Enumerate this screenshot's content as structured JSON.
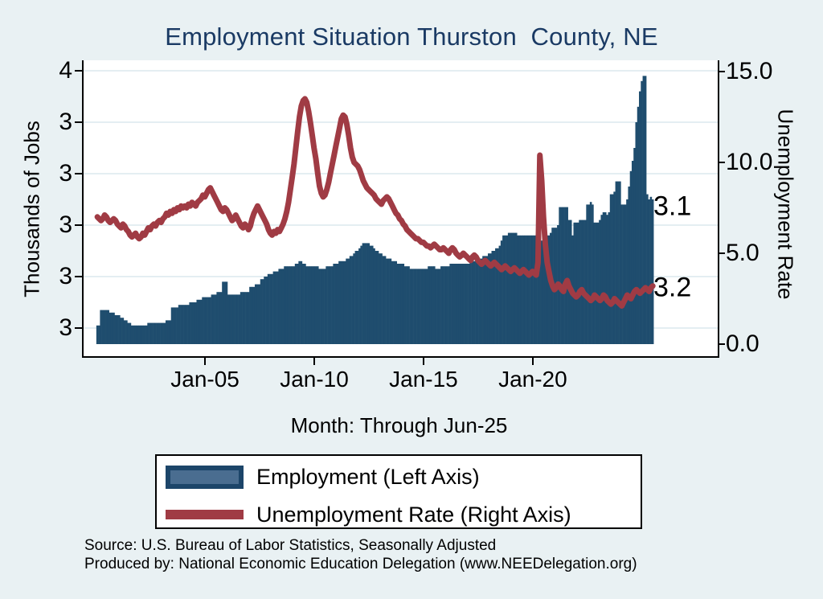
{
  "title": "Employment Situation Thurston  County, NE",
  "axes": {
    "left": {
      "title": "Thousands of Jobs",
      "tick_labels": [
        "4",
        "3",
        "3",
        "3",
        "3",
        "3"
      ],
      "tick_values": [
        3.6,
        3.4,
        3.2,
        3.0,
        2.8,
        2.6
      ]
    },
    "right": {
      "title": "Unemployment Rate",
      "tick_labels": [
        "15.0",
        "10.0",
        "5.0",
        "0.0"
      ],
      "tick_values": [
        15,
        10,
        5,
        0
      ]
    },
    "x": {
      "title": "Month: Through Jun-25",
      "tick_labels": [
        "Jan-05",
        "Jan-10",
        "Jan-15",
        "Jan-20"
      ],
      "tick_values": [
        2005,
        2010,
        2015,
        2020
      ]
    }
  },
  "annotations": [
    {
      "text": "3.1",
      "series": "Employment",
      "axis": "left",
      "value": 3.1
    },
    {
      "text": "3.2",
      "series": "Unemployment Rate",
      "axis": "right",
      "value": 3.2
    }
  ],
  "legend": {
    "items": [
      {
        "label": "Employment (Left Axis)",
        "type": "bar"
      },
      {
        "label": "Unemployment Rate (Right Axis)",
        "type": "line"
      }
    ]
  },
  "footer": {
    "source": "Source: U.S. Bureau of Labor Statistics, Seasonally Adjusted",
    "produced_by": "Produced by: National Economic Education Delegation (www.NEEDelegation.org)"
  },
  "colors": {
    "background": "#e9f1f3",
    "plot_background": "#ffffff",
    "gridline": "#dce9ee",
    "bar": "#1f4d6e",
    "line": "#a03b44",
    "title_text": "#1a3a64",
    "legend_bar_fill": "#4a6d90",
    "legend_bar_border": "#1c4569"
  },
  "chart_data": {
    "type": "bar",
    "title": "Employment Situation Thurston  County, NE",
    "xlabel": "Month: Through Jun-25",
    "x_start": "2000-01",
    "x_end": "2025-06",
    "x_frequency": "monthly",
    "left_axis": {
      "label": "Thousands of Jobs",
      "ticks": [
        2.6,
        2.8,
        3.0,
        3.2,
        3.4,
        3.6
      ]
    },
    "right_axis": {
      "label": "Unemployment Rate",
      "ticks": [
        0.0,
        5.0,
        10.0,
        15.0
      ]
    },
    "grid": true,
    "legend_position": "bottom",
    "series": [
      {
        "name": "Employment (Left Axis)",
        "type": "bar",
        "axis": "left",
        "unit": "thousands of jobs",
        "last_value": 3.1,
        "values": [
          2.61,
          2.61,
          2.67,
          2.67,
          2.67,
          2.67,
          2.67,
          2.66,
          2.66,
          2.66,
          2.65,
          2.65,
          2.65,
          2.64,
          2.64,
          2.63,
          2.63,
          2.62,
          2.62,
          2.61,
          2.61,
          2.61,
          2.61,
          2.61,
          2.61,
          2.61,
          2.61,
          2.61,
          2.62,
          2.62,
          2.62,
          2.62,
          2.62,
          2.62,
          2.62,
          2.62,
          2.62,
          2.62,
          2.63,
          2.63,
          2.63,
          2.68,
          2.68,
          2.68,
          2.68,
          2.69,
          2.69,
          2.69,
          2.69,
          2.69,
          2.69,
          2.7,
          2.7,
          2.7,
          2.7,
          2.71,
          2.71,
          2.71,
          2.72,
          2.72,
          2.72,
          2.72,
          2.72,
          2.73,
          2.73,
          2.73,
          2.74,
          2.74,
          2.74,
          2.78,
          2.78,
          2.78,
          2.73,
          2.73,
          2.73,
          2.73,
          2.73,
          2.73,
          2.73,
          2.74,
          2.74,
          2.74,
          2.74,
          2.74,
          2.76,
          2.76,
          2.76,
          2.77,
          2.77,
          2.77,
          2.79,
          2.79,
          2.8,
          2.8,
          2.81,
          2.81,
          2.81,
          2.82,
          2.82,
          2.82,
          2.83,
          2.83,
          2.83,
          2.84,
          2.84,
          2.84,
          2.84,
          2.84,
          2.84,
          2.85,
          2.85,
          2.86,
          2.86,
          2.85,
          2.85,
          2.84,
          2.84,
          2.84,
          2.84,
          2.84,
          2.84,
          2.84,
          2.83,
          2.83,
          2.83,
          2.83,
          2.84,
          2.84,
          2.84,
          2.84,
          2.85,
          2.85,
          2.85,
          2.86,
          2.86,
          2.86,
          2.86,
          2.87,
          2.87,
          2.88,
          2.88,
          2.89,
          2.9,
          2.9,
          2.91,
          2.92,
          2.93,
          2.93,
          2.93,
          2.93,
          2.92,
          2.92,
          2.91,
          2.9,
          2.9,
          2.89,
          2.89,
          2.88,
          2.88,
          2.87,
          2.87,
          2.87,
          2.86,
          2.86,
          2.86,
          2.85,
          2.85,
          2.85,
          2.85,
          2.84,
          2.84,
          2.84,
          2.83,
          2.83,
          2.83,
          2.83,
          2.83,
          2.83,
          2.83,
          2.83,
          2.83,
          2.83,
          2.84,
          2.84,
          2.84,
          2.84,
          2.83,
          2.83,
          2.83,
          2.84,
          2.84,
          2.84,
          2.84,
          2.84,
          2.85,
          2.85,
          2.85,
          2.85,
          2.85,
          2.85,
          2.85,
          2.85,
          2.85,
          2.85,
          2.85,
          2.86,
          2.86,
          2.86,
          2.87,
          2.87,
          2.87,
          2.87,
          2.88,
          2.88,
          2.88,
          2.89,
          2.89,
          2.9,
          2.9,
          2.91,
          2.91,
          2.92,
          2.94,
          2.96,
          2.96,
          2.96,
          2.97,
          2.97,
          2.97,
          2.97,
          2.97,
          2.96,
          2.96,
          2.96,
          2.96,
          2.96,
          2.96,
          2.96,
          2.96,
          2.96,
          2.96,
          2.96,
          2.95,
          2.93,
          2.94,
          2.95,
          2.95,
          2.96,
          2.96,
          2.97,
          2.99,
          2.99,
          2.99,
          3.0,
          3.07,
          3.07,
          3.07,
          3.07,
          3.07,
          3.02,
          3.02,
          2.96,
          3.01,
          3.01,
          3.01,
          3.02,
          3.02,
          3.02,
          3.02,
          3.08,
          3.08,
          3.09,
          3.08,
          3.01,
          3.01,
          3.01,
          3.02,
          3.04,
          3.05,
          3.05,
          3.04,
          3.05,
          3.12,
          3.12,
          3.13,
          3.17,
          3.17,
          3.17,
          3.08,
          3.08,
          3.08,
          3.1,
          3.15,
          3.21,
          3.25,
          3.3,
          3.4,
          3.46,
          3.52,
          3.56,
          3.58,
          3.58,
          3.12,
          3.1,
          3.11,
          3.1
        ]
      },
      {
        "name": "Unemployment Rate (Right Axis)",
        "type": "line",
        "axis": "right",
        "unit": "percent",
        "last_value": 3.2,
        "values": [
          7.0,
          6.9,
          6.8,
          6.9,
          7.1,
          7.0,
          6.8,
          6.7,
          6.8,
          6.9,
          6.8,
          6.6,
          6.5,
          6.4,
          6.6,
          6.5,
          6.3,
          6.2,
          6.0,
          5.9,
          6.0,
          6.1,
          5.9,
          5.8,
          5.9,
          6.1,
          6.0,
          6.2,
          6.4,
          6.3,
          6.5,
          6.6,
          6.5,
          6.7,
          6.8,
          6.7,
          6.9,
          7.0,
          7.2,
          7.1,
          7.3,
          7.2,
          7.4,
          7.3,
          7.5,
          7.4,
          7.6,
          7.5,
          7.6,
          7.5,
          7.7,
          7.6,
          7.8,
          7.7,
          7.6,
          7.8,
          7.9,
          8.0,
          8.2,
          8.1,
          8.3,
          8.5,
          8.6,
          8.4,
          8.2,
          8.0,
          7.8,
          7.6,
          7.4,
          7.3,
          7.5,
          7.4,
          7.2,
          7.0,
          6.8,
          6.9,
          7.1,
          6.9,
          6.7,
          6.5,
          6.4,
          6.6,
          6.5,
          6.3,
          6.5,
          6.9,
          7.2,
          7.4,
          7.6,
          7.4,
          7.2,
          7.0,
          6.8,
          6.6,
          6.3,
          6.1,
          6.0,
          6.2,
          6.1,
          6.3,
          6.2,
          6.4,
          6.6,
          6.9,
          7.3,
          7.8,
          8.5,
          9.2,
          9.9,
          10.8,
          11.7,
          12.5,
          13.1,
          13.4,
          13.5,
          13.3,
          12.8,
          12.2,
          11.5,
          10.8,
          10.2,
          9.4,
          8.7,
          8.3,
          8.1,
          8.2,
          8.5,
          8.9,
          9.4,
          9.9,
          10.4,
          10.9,
          11.4,
          11.9,
          12.4,
          12.6,
          12.5,
          12.1,
          11.5,
          10.8,
          10.3,
          10.0,
          9.9,
          9.8,
          9.6,
          9.3,
          9.0,
          8.8,
          8.6,
          8.5,
          8.4,
          8.3,
          8.2,
          8.0,
          7.9,
          7.8,
          7.7,
          7.9,
          8.0,
          8.1,
          8.0,
          7.8,
          7.6,
          7.4,
          7.2,
          7.1,
          6.9,
          6.8,
          6.6,
          6.5,
          6.3,
          6.2,
          6.1,
          6.0,
          5.9,
          5.8,
          5.8,
          5.7,
          5.6,
          5.6,
          5.5,
          5.4,
          5.4,
          5.3,
          5.4,
          5.5,
          5.4,
          5.3,
          5.2,
          5.2,
          5.3,
          5.2,
          5.1,
          5.0,
          5.2,
          5.3,
          5.2,
          5.0,
          4.9,
          4.8,
          4.9,
          5.0,
          4.9,
          4.8,
          4.7,
          4.6,
          4.8,
          4.9,
          4.8,
          4.6,
          4.5,
          4.4,
          4.5,
          4.6,
          4.5,
          4.4,
          4.3,
          4.4,
          4.5,
          4.4,
          4.3,
          4.2,
          4.1,
          4.2,
          4.3,
          4.2,
          4.1,
          4.0,
          4.1,
          4.2,
          4.1,
          4.0,
          3.9,
          4.0,
          4.1,
          4.0,
          3.9,
          3.8,
          3.9,
          4.0,
          3.9,
          3.8,
          4.5,
          10.4,
          9.0,
          7.0,
          5.5,
          4.5,
          4.0,
          3.5,
          3.2,
          3.0,
          3.1,
          3.3,
          3.2,
          3.0,
          2.9,
          3.3,
          3.5,
          3.2,
          3.0,
          2.8,
          2.7,
          2.6,
          2.7,
          2.9,
          3.0,
          2.8,
          2.7,
          2.6,
          2.5,
          2.4,
          2.5,
          2.7,
          2.6,
          2.5,
          2.4,
          2.5,
          2.7,
          2.6,
          2.4,
          2.3,
          2.2,
          2.3,
          2.5,
          2.4,
          2.3,
          2.2,
          2.1,
          2.3,
          2.5,
          2.7,
          2.6,
          2.5,
          2.7,
          2.9,
          3.0,
          2.9,
          2.8,
          2.9,
          3.0,
          3.1,
          3.0,
          2.9,
          3.1,
          3.2
        ]
      }
    ]
  }
}
